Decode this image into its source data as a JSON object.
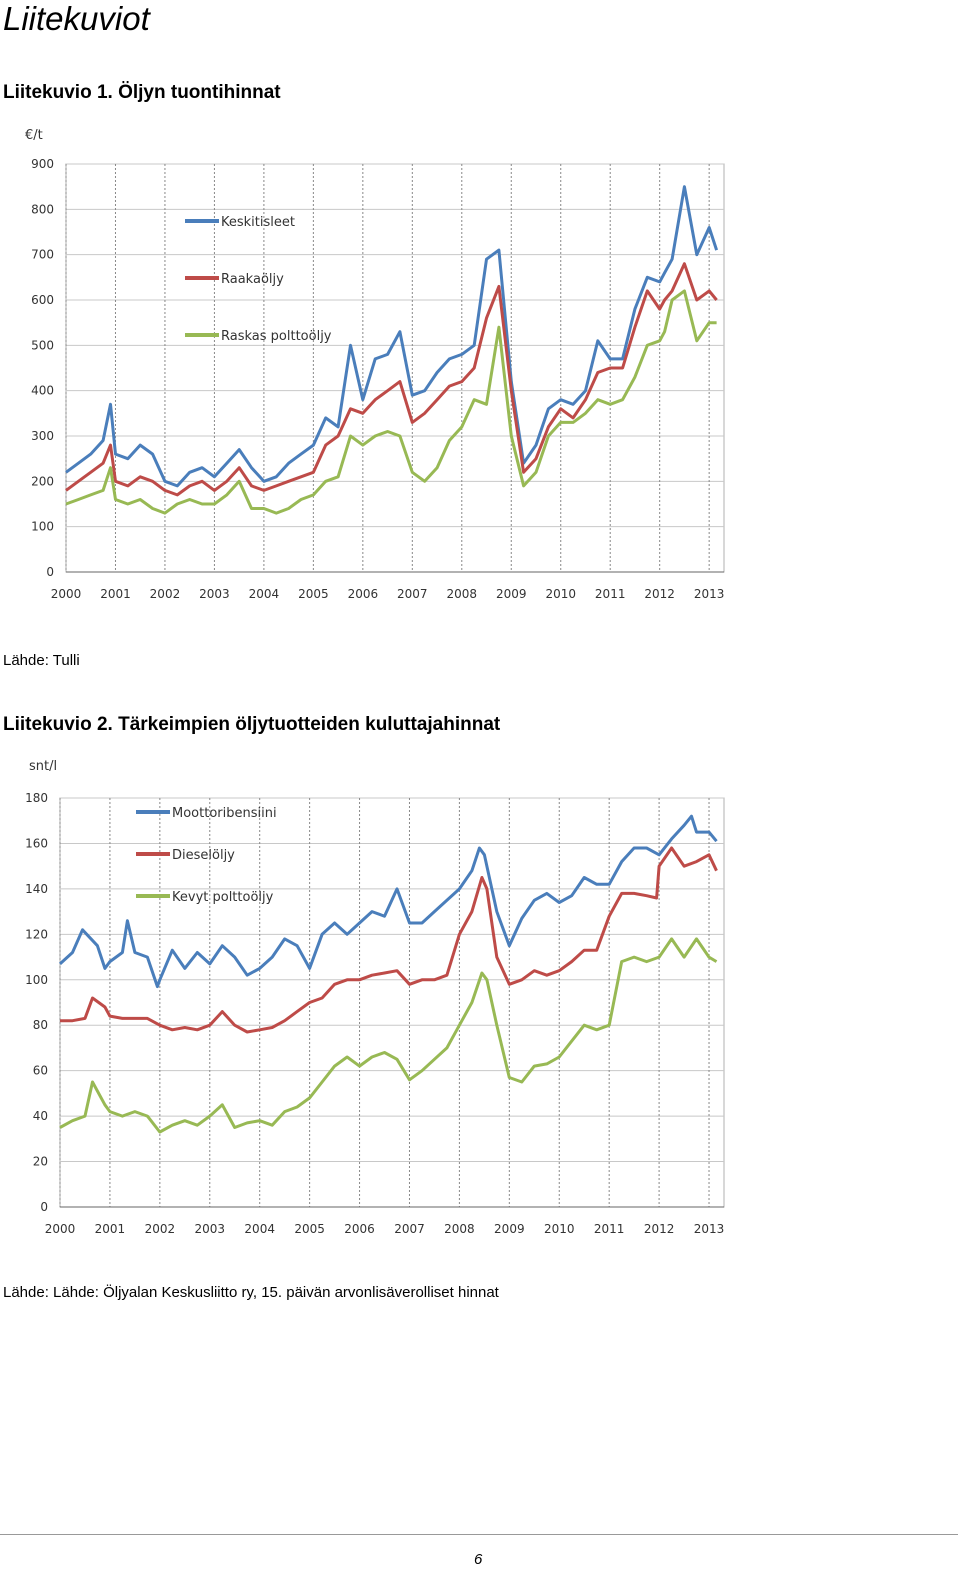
{
  "page": {
    "title": "Liitekuviot",
    "page_number": "6"
  },
  "figures": [
    {
      "title": "Liitekuvio 1. Öljyn tuontihinnat",
      "source": "Lähde: Tulli"
    },
    {
      "title": "Liitekuvio 2. Tärkeimpien öljytuotteiden kuluttajahinnat",
      "source": "Lähde: Lähde: Öljyalan Keskusliitto ry, 15. päivän arvonlisäverolliset hinnat"
    }
  ],
  "chart_data": [
    {
      "type": "line",
      "title": "",
      "xlabel": "",
      "ylabel": "€/t",
      "xlim": [
        2000,
        2013.3
      ],
      "ylim": [
        0,
        900
      ],
      "yticks": [
        0,
        100,
        200,
        300,
        400,
        500,
        600,
        700,
        800,
        900
      ],
      "xticks": [
        2000,
        2001,
        2002,
        2003,
        2004,
        2005,
        2006,
        2007,
        2008,
        2009,
        2010,
        2011,
        2012,
        2013
      ],
      "grid": {
        "horizontal": "solid",
        "vertical": "dashed"
      },
      "legend": "upper-left",
      "series": [
        {
          "name": "Keskitisleet",
          "color": "#4a7ebb",
          "x": [
            2000.0,
            2000.25,
            2000.5,
            2000.75,
            2000.9,
            2001.0,
            2001.25,
            2001.5,
            2001.75,
            2002.0,
            2002.25,
            2002.5,
            2002.75,
            2003.0,
            2003.25,
            2003.5,
            2003.75,
            2004.0,
            2004.25,
            2004.5,
            2004.75,
            2005.0,
            2005.25,
            2005.5,
            2005.75,
            2006.0,
            2006.25,
            2006.5,
            2006.75,
            2007.0,
            2007.25,
            2007.5,
            2007.75,
            2008.0,
            2008.25,
            2008.5,
            2008.75,
            2009.0,
            2009.25,
            2009.5,
            2009.75,
            2010.0,
            2010.25,
            2010.5,
            2010.75,
            2011.0,
            2011.25,
            2011.5,
            2011.75,
            2012.0,
            2012.1,
            2012.25,
            2012.5,
            2012.75,
            2013.0,
            2013.15
          ],
          "values": [
            220,
            240,
            260,
            290,
            370,
            260,
            250,
            280,
            260,
            200,
            190,
            220,
            230,
            210,
            240,
            270,
            230,
            200,
            210,
            240,
            260,
            280,
            340,
            320,
            500,
            380,
            470,
            480,
            530,
            390,
            400,
            440,
            470,
            480,
            500,
            690,
            710,
            420,
            240,
            280,
            360,
            380,
            370,
            400,
            510,
            470,
            470,
            580,
            650,
            640,
            660,
            690,
            850,
            700,
            760,
            710
          ]
        },
        {
          "name": "Raakaöljy",
          "color": "#be4b48",
          "x": [
            2000.0,
            2000.25,
            2000.5,
            2000.75,
            2000.9,
            2001.0,
            2001.25,
            2001.5,
            2001.75,
            2002.0,
            2002.25,
            2002.5,
            2002.75,
            2003.0,
            2003.25,
            2003.5,
            2003.75,
            2004.0,
            2004.25,
            2004.5,
            2004.75,
            2005.0,
            2005.25,
            2005.5,
            2005.75,
            2006.0,
            2006.25,
            2006.5,
            2006.75,
            2007.0,
            2007.25,
            2007.5,
            2007.75,
            2008.0,
            2008.25,
            2008.5,
            2008.75,
            2009.0,
            2009.25,
            2009.5,
            2009.75,
            2010.0,
            2010.25,
            2010.5,
            2010.75,
            2011.0,
            2011.25,
            2011.5,
            2011.75,
            2012.0,
            2012.1,
            2012.25,
            2012.5,
            2012.75,
            2013.0,
            2013.15
          ],
          "values": [
            180,
            200,
            220,
            240,
            280,
            200,
            190,
            210,
            200,
            180,
            170,
            190,
            200,
            180,
            200,
            230,
            190,
            180,
            190,
            200,
            210,
            220,
            280,
            300,
            360,
            350,
            380,
            400,
            420,
            330,
            350,
            380,
            410,
            420,
            450,
            560,
            630,
            400,
            220,
            250,
            320,
            360,
            340,
            380,
            440,
            450,
            450,
            540,
            620,
            580,
            600,
            620,
            680,
            600,
            620,
            600
          ]
        },
        {
          "name": "Raskas polttoöljy",
          "color": "#98b954",
          "x": [
            2000.0,
            2000.25,
            2000.5,
            2000.75,
            2000.9,
            2001.0,
            2001.25,
            2001.5,
            2001.75,
            2002.0,
            2002.25,
            2002.5,
            2002.75,
            2003.0,
            2003.25,
            2003.5,
            2003.75,
            2004.0,
            2004.25,
            2004.5,
            2004.75,
            2005.0,
            2005.25,
            2005.5,
            2005.75,
            2006.0,
            2006.25,
            2006.5,
            2006.75,
            2007.0,
            2007.25,
            2007.5,
            2007.75,
            2008.0,
            2008.25,
            2008.5,
            2008.75,
            2009.0,
            2009.25,
            2009.5,
            2009.75,
            2010.0,
            2010.25,
            2010.5,
            2010.75,
            2011.0,
            2011.25,
            2011.5,
            2011.75,
            2012.0,
            2012.1,
            2012.25,
            2012.5,
            2012.75,
            2013.0,
            2013.15
          ],
          "values": [
            150,
            160,
            170,
            180,
            230,
            160,
            150,
            160,
            140,
            130,
            150,
            160,
            150,
            150,
            170,
            200,
            140,
            140,
            130,
            140,
            160,
            170,
            200,
            210,
            300,
            280,
            300,
            310,
            300,
            220,
            200,
            230,
            290,
            320,
            380,
            370,
            540,
            300,
            190,
            220,
            300,
            330,
            330,
            350,
            380,
            370,
            380,
            430,
            500,
            510,
            530,
            600,
            620,
            510,
            550,
            550
          ]
        }
      ]
    },
    {
      "type": "line",
      "title": "",
      "xlabel": "",
      "ylabel": "snt/l",
      "xlim": [
        2000,
        2013.3
      ],
      "ylim": [
        0,
        180
      ],
      "yticks": [
        0,
        20,
        40,
        60,
        80,
        100,
        120,
        140,
        160,
        180
      ],
      "xticks": [
        2000,
        2001,
        2002,
        2003,
        2004,
        2005,
        2006,
        2007,
        2008,
        2009,
        2010,
        2011,
        2012,
        2013
      ],
      "grid": {
        "horizontal": "solid",
        "vertical": "dashed"
      },
      "legend": "upper-left",
      "series": [
        {
          "name": "Moottoribensiini",
          "color": "#4a7ebb",
          "x": [
            2000.0,
            2000.25,
            2000.45,
            2000.75,
            2000.9,
            2001.0,
            2001.25,
            2001.35,
            2001.5,
            2001.75,
            2001.95,
            2002.0,
            2002.25,
            2002.5,
            2002.75,
            2003.0,
            2003.25,
            2003.5,
            2003.75,
            2004.0,
            2004.25,
            2004.5,
            2004.75,
            2005.0,
            2005.25,
            2005.5,
            2005.75,
            2006.0,
            2006.25,
            2006.5,
            2006.75,
            2007.0,
            2007.25,
            2007.5,
            2007.75,
            2008.0,
            2008.25,
            2008.4,
            2008.5,
            2008.75,
            2009.0,
            2009.25,
            2009.5,
            2009.75,
            2010.0,
            2010.25,
            2010.5,
            2010.75,
            2011.0,
            2011.25,
            2011.5,
            2011.75,
            2012.0,
            2012.25,
            2012.5,
            2012.65,
            2012.75,
            2013.0,
            2013.15
          ],
          "values": [
            107,
            112,
            122,
            115,
            105,
            108,
            112,
            126,
            112,
            110,
            97,
            100,
            113,
            105,
            112,
            107,
            115,
            110,
            102,
            105,
            110,
            118,
            115,
            105,
            120,
            125,
            120,
            125,
            130,
            128,
            140,
            125,
            125,
            130,
            135,
            140,
            148,
            158,
            155,
            130,
            115,
            127,
            135,
            138,
            134,
            137,
            145,
            142,
            142,
            152,
            158,
            158,
            155,
            162,
            168,
            172,
            165,
            165,
            161
          ]
        },
        {
          "name": "Dieselöljy",
          "color": "#be4b48",
          "x": [
            2000.0,
            2000.25,
            2000.5,
            2000.65,
            2000.9,
            2001.0,
            2001.25,
            2001.5,
            2001.75,
            2002.0,
            2002.25,
            2002.5,
            2002.75,
            2003.0,
            2003.25,
            2003.5,
            2003.75,
            2004.0,
            2004.25,
            2004.5,
            2004.75,
            2005.0,
            2005.25,
            2005.5,
            2005.75,
            2006.0,
            2006.25,
            2006.5,
            2006.75,
            2007.0,
            2007.25,
            2007.5,
            2007.75,
            2008.0,
            2008.25,
            2008.45,
            2008.55,
            2008.75,
            2009.0,
            2009.25,
            2009.5,
            2009.75,
            2010.0,
            2010.25,
            2010.5,
            2010.75,
            2011.0,
            2011.25,
            2011.5,
            2011.75,
            2011.95,
            2012.0,
            2012.25,
            2012.5,
            2012.75,
            2013.0,
            2013.15
          ],
          "values": [
            82,
            82,
            83,
            92,
            88,
            84,
            83,
            83,
            83,
            80,
            78,
            79,
            78,
            80,
            86,
            80,
            77,
            78,
            79,
            82,
            86,
            90,
            92,
            98,
            100,
            100,
            102,
            103,
            104,
            98,
            100,
            100,
            102,
            120,
            130,
            145,
            140,
            110,
            98,
            100,
            104,
            102,
            104,
            108,
            113,
            113,
            128,
            138,
            138,
            137,
            136,
            150,
            158,
            150,
            152,
            155,
            148
          ]
        },
        {
          "name": "Kevyt polttoöljy",
          "color": "#98b954",
          "x": [
            2000.0,
            2000.25,
            2000.5,
            2000.65,
            2000.9,
            2001.0,
            2001.25,
            2001.5,
            2001.75,
            2002.0,
            2002.25,
            2002.5,
            2002.75,
            2003.0,
            2003.25,
            2003.5,
            2003.75,
            2004.0,
            2004.25,
            2004.5,
            2004.75,
            2005.0,
            2005.25,
            2005.5,
            2005.75,
            2006.0,
            2006.25,
            2006.5,
            2006.75,
            2007.0,
            2007.25,
            2007.5,
            2007.75,
            2008.0,
            2008.25,
            2008.45,
            2008.55,
            2008.75,
            2009.0,
            2009.25,
            2009.5,
            2009.75,
            2010.0,
            2010.25,
            2010.5,
            2010.75,
            2011.0,
            2011.25,
            2011.5,
            2011.75,
            2012.0,
            2012.25,
            2012.5,
            2012.75,
            2013.0,
            2013.15
          ],
          "values": [
            35,
            38,
            40,
            55,
            45,
            42,
            40,
            42,
            40,
            33,
            36,
            38,
            36,
            40,
            45,
            35,
            37,
            38,
            36,
            42,
            44,
            48,
            55,
            62,
            66,
            62,
            66,
            68,
            65,
            56,
            60,
            65,
            70,
            80,
            90,
            103,
            100,
            80,
            57,
            55,
            62,
            63,
            66,
            73,
            80,
            78,
            80,
            108,
            110,
            108,
            110,
            118,
            110,
            118,
            110,
            108
          ]
        }
      ]
    }
  ]
}
